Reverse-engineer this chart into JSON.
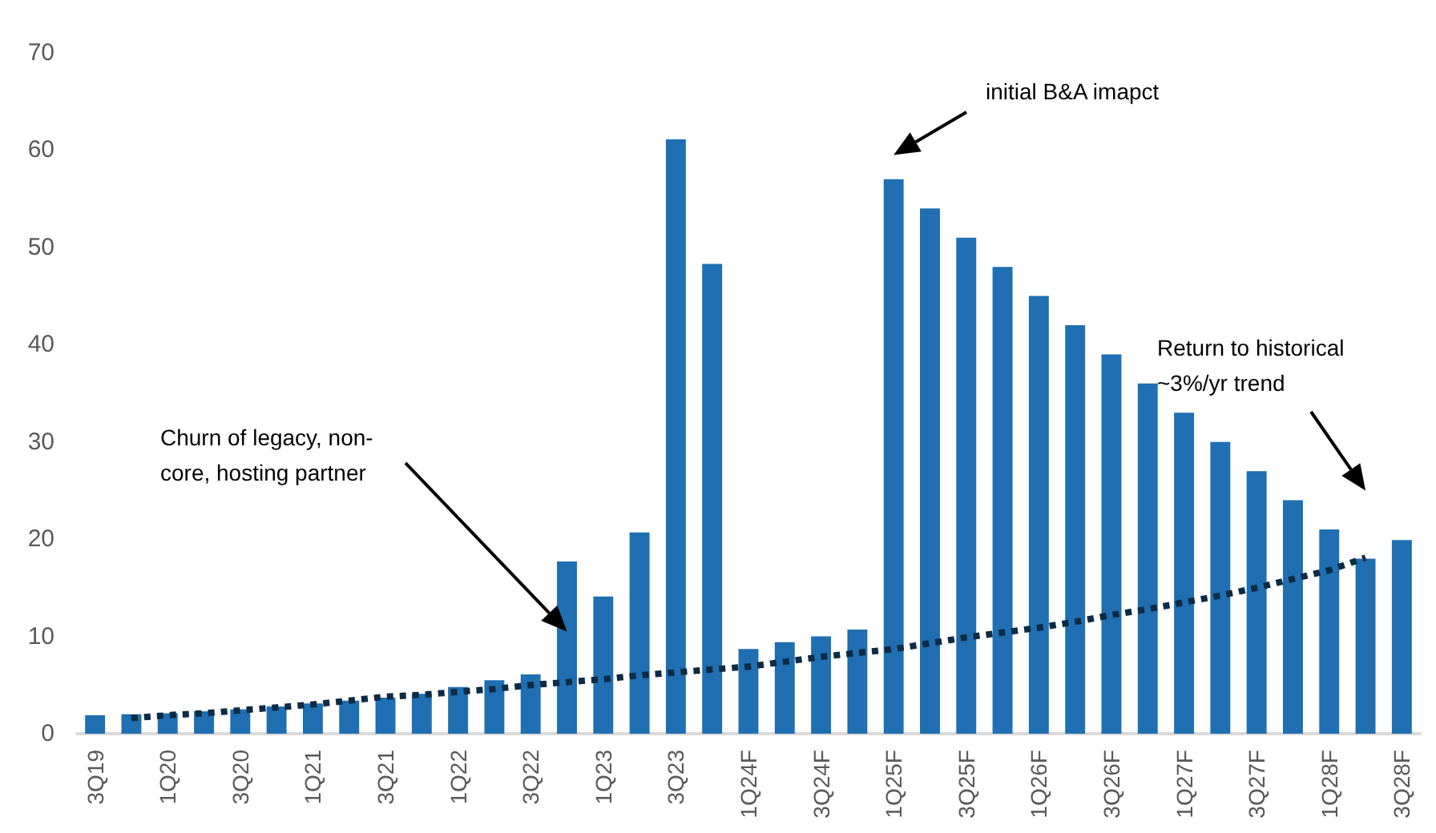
{
  "chart_data": {
    "type": "bar",
    "categories": [
      "3Q19",
      null,
      "1Q20",
      null,
      "3Q20",
      null,
      "1Q21",
      null,
      "3Q21",
      null,
      "1Q22",
      null,
      "3Q22",
      null,
      "1Q23",
      null,
      "3Q23",
      null,
      "1Q24F",
      null,
      "3Q24F",
      null,
      "1Q25F",
      null,
      "3Q25F",
      null,
      "1Q26F",
      null,
      "3Q26F",
      null,
      "1Q27F",
      null,
      "3Q27F",
      null,
      "1Q28F",
      null,
      "3Q28F"
    ],
    "series": [
      {
        "color": "#1f6fb2",
        "values": [
          1.9,
          2.0,
          2.1,
          2.3,
          2.5,
          2.8,
          3.1,
          3.4,
          3.7,
          4.1,
          4.8,
          5.5,
          6.1,
          17.7,
          14.1,
          20.7,
          61.1,
          48.3,
          8.7,
          9.4,
          10.0,
          10.7,
          57,
          54,
          51,
          48,
          45,
          42,
          39,
          36,
          33,
          30,
          27,
          24,
          21,
          18,
          19.9
        ]
      },
      {
        "type": "line",
        "color": "#0d2b45",
        "line_style": "dotted",
        "marker": "none",
        "values": [
          null,
          1.6,
          1.9,
          2.1,
          2.4,
          2.7,
          3.0,
          3.4,
          3.8,
          4.0,
          4.3,
          4.6,
          5.0,
          5.3,
          5.6,
          6.0,
          6.3,
          6.6,
          6.9,
          7.4,
          7.9,
          8.3,
          8.7,
          9.3,
          9.9,
          10.4,
          10.9,
          11.5,
          12.2,
          12.8,
          13.5,
          14.2,
          15.0,
          15.9,
          16.8,
          18.1,
          null
        ]
      }
    ],
    "ylim": [
      0,
      70
    ],
    "yticks": [
      0,
      10,
      20,
      30,
      40,
      50,
      60,
      70
    ],
    "grid": false,
    "annotations": [
      "initial B&A imapct",
      "Churn of legacy, non-\ncore, hosting partner",
      "Return to historical\n~3%/yr trend"
    ]
  }
}
